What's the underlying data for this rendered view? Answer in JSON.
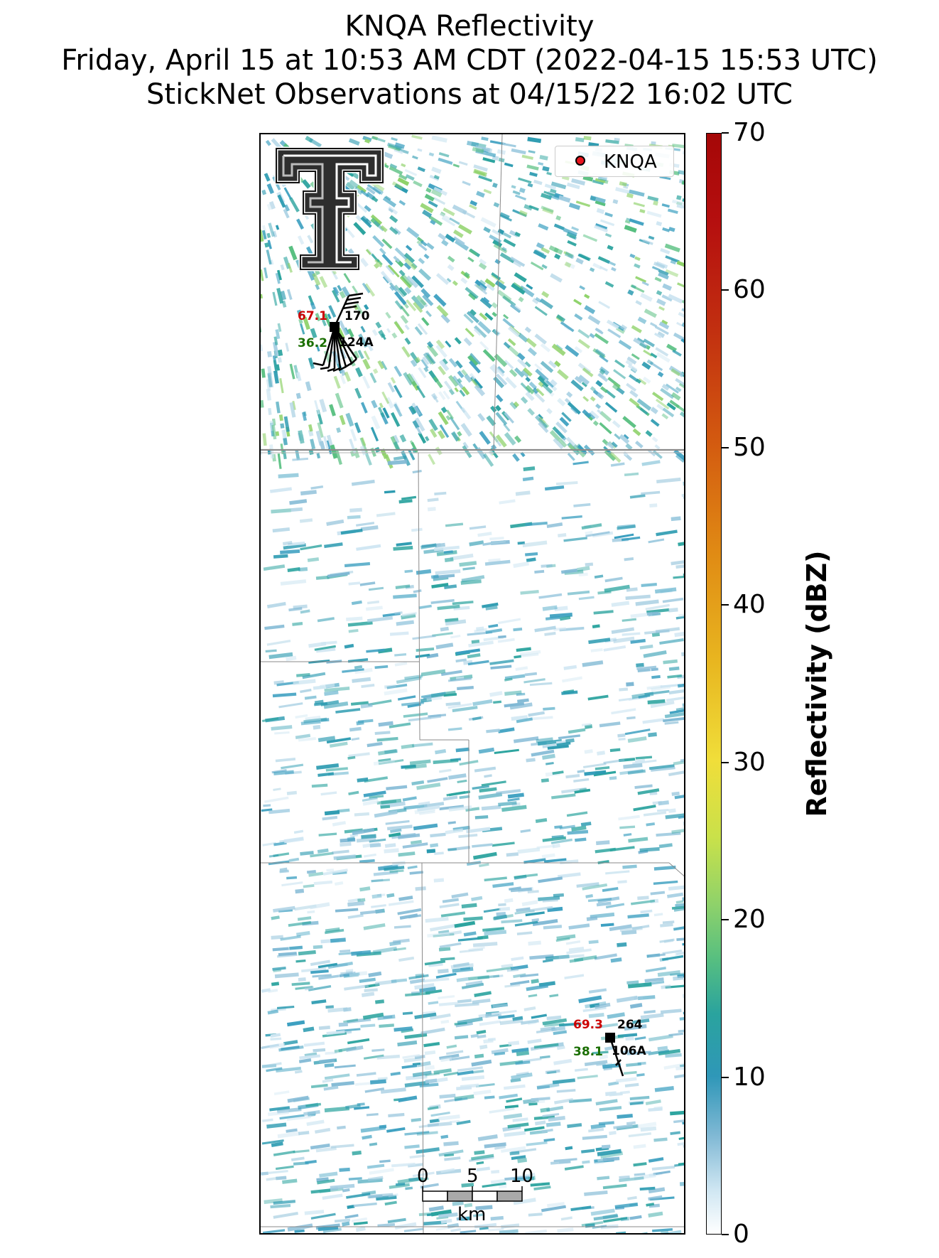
{
  "title": {
    "line1": "KNQA Reflectivity",
    "line2": "Friday, April 15 at 10:53 AM CDT (2022-04-15 15:53 UTC)",
    "line3": "StickNet Observations at 04/15/22 16:02 UTC"
  },
  "legend": {
    "label": "KNQA",
    "marker_color": "#e8141c"
  },
  "colorbar": {
    "title": "Reflectivity (dBZ)",
    "min": 0,
    "max": 70,
    "ticks": [
      "0",
      "10",
      "20",
      "30",
      "40",
      "50",
      "60",
      "70"
    ]
  },
  "logo": {
    "name": "texas-tech-double-t-logo",
    "letter": "T"
  },
  "stations": [
    {
      "id": "124A",
      "temp": "67.1",
      "dewpoint": "36.2",
      "wind_dir": "170",
      "temp_color": "#cc0000",
      "dew_color": "#1a6e00"
    },
    {
      "id": "106A",
      "temp": "69.3",
      "dewpoint": "38.1",
      "wind_dir": "264",
      "temp_color": "#cc0000",
      "dew_color": "#1a6e00"
    }
  ],
  "scale_bar": {
    "ticks": [
      "0",
      "5",
      "10"
    ],
    "unit": "km"
  }
}
